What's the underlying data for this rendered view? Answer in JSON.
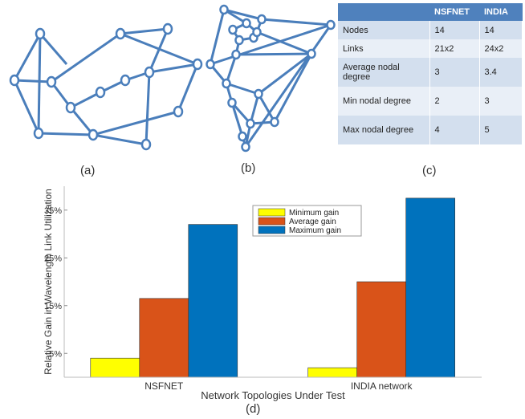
{
  "panels": {
    "a": "(a)",
    "b": "(b)",
    "c": "(c)",
    "d": "(d)"
  },
  "colors": {
    "edge": "#4a7ebb",
    "node_fill": "#ffffff",
    "minimum": "#ffff00",
    "average": "#d95319",
    "maximum": "#0072bd"
  },
  "table": {
    "headers": [
      "",
      "NSFNET",
      "INDIA"
    ],
    "rows": [
      [
        "Nodes",
        "14",
        "14"
      ],
      [
        "Links",
        "21x2",
        "24x2"
      ],
      [
        "Average nodal degree",
        "3",
        "3.4"
      ],
      [
        "Min nodal degree",
        "2",
        "3"
      ],
      [
        "Max nodal degree",
        "4",
        "5"
      ]
    ]
  },
  "chart_data": {
    "type": "bar",
    "categories": [
      "NSFNET",
      "INDIA network"
    ],
    "series": [
      {
        "name": "Minimum gain",
        "values": [
          4,
          2
        ]
      },
      {
        "name": "Average gain",
        "values": [
          16.5,
          20
        ]
      },
      {
        "name": "Maximum gain",
        "values": [
          32,
          37.5
        ]
      }
    ],
    "xlabel": "Network Topologies Under Test",
    "ylabel": "Relative Gain in Wavelength Link Utilization",
    "ylim": [
      0,
      40
    ],
    "yticks": [
      5,
      15,
      25,
      35
    ],
    "ytick_labels": [
      "5%",
      "15%",
      "25%",
      "35%"
    ],
    "legend_position": "top-right",
    "grid": false
  }
}
